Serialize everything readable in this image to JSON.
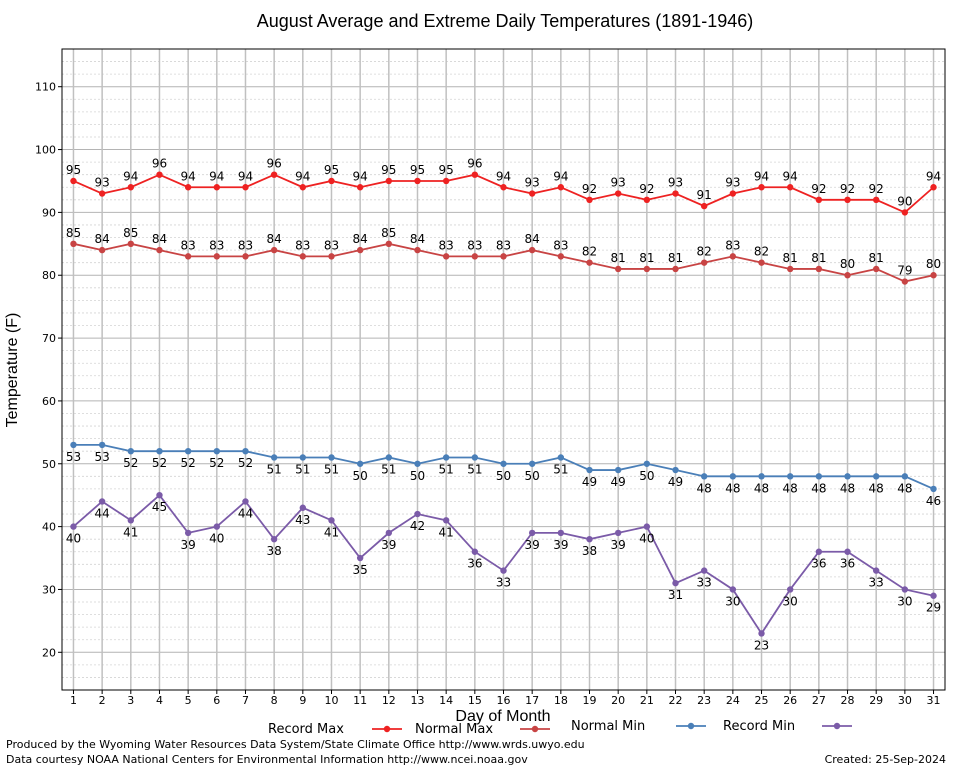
{
  "chart_data": {
    "type": "line",
    "title": "August Average and Extreme Daily Temperatures (1891-1946)",
    "xlabel": "Day of Month",
    "ylabel": "Temperature (F)",
    "x": [
      1,
      2,
      3,
      4,
      5,
      6,
      7,
      8,
      9,
      10,
      11,
      12,
      13,
      14,
      15,
      16,
      17,
      18,
      19,
      20,
      21,
      22,
      23,
      24,
      25,
      26,
      27,
      28,
      29,
      30,
      31
    ],
    "xlim": [
      0.6,
      31.4
    ],
    "ylim": [
      14,
      116
    ],
    "yticks": [
      20,
      30,
      40,
      50,
      60,
      70,
      80,
      90,
      100,
      110
    ],
    "grid": true,
    "legend_position": "bottom",
    "series": [
      {
        "name": "Record Max",
        "color": "#ee2222",
        "label_position": "above",
        "values": [
          95,
          93,
          94,
          96,
          94,
          94,
          94,
          96,
          94,
          95,
          94,
          95,
          95,
          95,
          96,
          94,
          93,
          94,
          92,
          93,
          92,
          93,
          91,
          93,
          94,
          94,
          92,
          92,
          92,
          90,
          94
        ]
      },
      {
        "name": "Normal Max",
        "color": "#c84444",
        "label_position": "above",
        "values": [
          85,
          84,
          85,
          84,
          83,
          83,
          83,
          84,
          83,
          83,
          84,
          85,
          84,
          83,
          83,
          83,
          84,
          83,
          82,
          81,
          81,
          81,
          82,
          83,
          82,
          81,
          81,
          80,
          81,
          79,
          80
        ]
      },
      {
        "name": "Normal Min",
        "color": "#4a7fb8",
        "label_position": "below",
        "values": [
          53,
          53,
          52,
          52,
          52,
          52,
          52,
          51,
          51,
          51,
          50,
          51,
          50,
          51,
          51,
          50,
          50,
          51,
          49,
          49,
          50,
          49,
          48,
          48,
          48,
          48,
          48,
          48,
          48,
          48,
          46
        ]
      },
      {
        "name": "Record Min",
        "color": "#7b5ba8",
        "label_position": "below",
        "values": [
          40,
          44,
          41,
          45,
          39,
          40,
          44,
          38,
          43,
          41,
          35,
          39,
          42,
          41,
          36,
          33,
          39,
          39,
          38,
          39,
          40,
          31,
          33,
          30,
          23,
          30,
          36,
          36,
          33,
          30,
          29
        ]
      }
    ]
  },
  "footer": {
    "produced_by": "Produced by the Wyoming Water Resources Data System/State Climate Office http://www.wrds.uwyo.edu",
    "data_courtesy": "Data courtesy NOAA National Centers for Environmental Information http://www.ncei.noaa.gov",
    "created": "Created:  25-Sep-2024"
  }
}
